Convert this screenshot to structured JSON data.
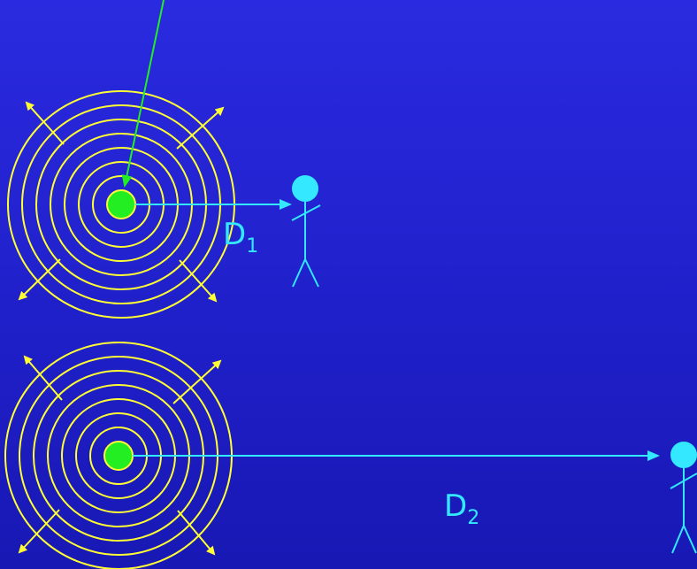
{
  "colors": {
    "background": "#2222d6",
    "waves": "#ffff33",
    "source": "#22ee22",
    "measure": "#33e8ff",
    "pointer": "#22ee22"
  },
  "diagram": {
    "sources": [
      {
        "id": "top",
        "distance_letter": "D",
        "distance_subscript": "1"
      },
      {
        "id": "bottom",
        "distance_letter": "D",
        "distance_subscript": "2"
      }
    ],
    "icons": [
      "radiating-waves-icon",
      "observer-stick-figure-icon",
      "pointer-arrow-icon"
    ]
  }
}
